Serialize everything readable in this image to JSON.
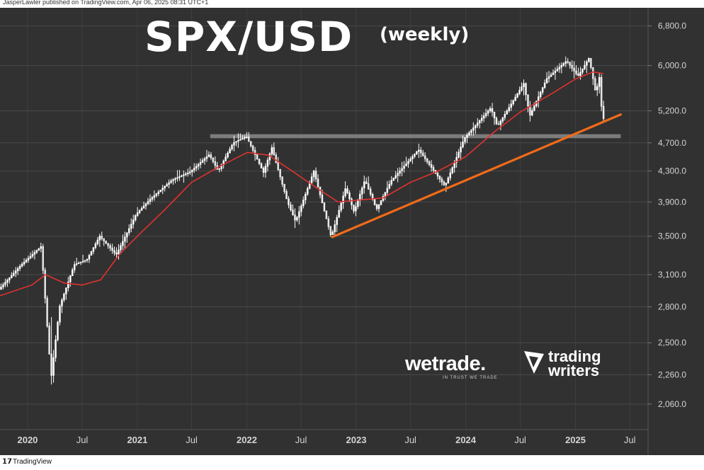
{
  "header": {
    "publisher_line": "JasperLawler published on TradingView.com, Apr 06, 2025 08:31 UTC+1"
  },
  "footer": {
    "brand": "TradingView"
  },
  "chart_data": {
    "type": "candlestick",
    "title": "SPX/USD",
    "subtitle": "(weekly)",
    "y_scale": "log",
    "ylim": [
      1900,
      7200
    ],
    "y_ticks": [
      2060,
      2260,
      2500,
      2800,
      3100,
      3500,
      3900,
      4300,
      4700,
      5200,
      6000,
      6800
    ],
    "y_tick_labels": [
      "2,060.0",
      "2,260.0",
      "2,500.0",
      "2,800.0",
      "3,100.0",
      "3,500.0",
      "3,900.0",
      "4,300.0",
      "4,700.0",
      "5,200.0",
      "6,000.0",
      "6,800.0"
    ],
    "x_ticks": [
      "2020",
      "Jul",
      "2021",
      "Jul",
      "2022",
      "Jul",
      "2023",
      "Jul",
      "2024",
      "Jul",
      "2025",
      "Jul"
    ],
    "xlim": [
      "2019-10-01",
      "2025-08-31"
    ],
    "price_path": [
      [
        "2019-10-01",
        2960
      ],
      [
        "2019-12-15",
        3200
      ],
      [
        "2020-02-19",
        3390
      ],
      [
        "2020-03-23",
        2237
      ],
      [
        "2020-04-20",
        2800
      ],
      [
        "2020-06-08",
        3200
      ],
      [
        "2020-07-20",
        3250
      ],
      [
        "2020-09-01",
        3500
      ],
      [
        "2020-10-26",
        3300
      ],
      [
        "2020-12-31",
        3750
      ],
      [
        "2021-02-15",
        3930
      ],
      [
        "2021-04-30",
        4180
      ],
      [
        "2021-06-30",
        4290
      ],
      [
        "2021-09-01",
        4530
      ],
      [
        "2021-10-01",
        4300
      ],
      [
        "2021-11-20",
        4700
      ],
      [
        "2022-01-03",
        4796
      ],
      [
        "2022-03-01",
        4280
      ],
      [
        "2022-03-29",
        4630
      ],
      [
        "2022-05-20",
        3900
      ],
      [
        "2022-06-16",
        3666
      ],
      [
        "2022-08-16",
        4300
      ],
      [
        "2022-10-13",
        3491
      ],
      [
        "2022-11-30",
        4080
      ],
      [
        "2022-12-28",
        3780
      ],
      [
        "2023-02-02",
        4180
      ],
      [
        "2023-03-13",
        3810
      ],
      [
        "2023-05-01",
        4170
      ],
      [
        "2023-07-31",
        4600
      ],
      [
        "2023-10-27",
        4100
      ],
      [
        "2023-12-31",
        4770
      ],
      [
        "2024-03-28",
        5250
      ],
      [
        "2024-04-19",
        4950
      ],
      [
        "2024-07-16",
        5670
      ],
      [
        "2024-08-05",
        5120
      ],
      [
        "2024-10-01",
        5760
      ],
      [
        "2024-12-06",
        6090
      ],
      [
        "2025-01-13",
        5800
      ],
      [
        "2025-02-19",
        6147
      ],
      [
        "2025-03-13",
        5500
      ],
      [
        "2025-03-25",
        5780
      ],
      [
        "2025-04-04",
        5074
      ]
    ],
    "candles": [
      {
        "week": "2020-03-16",
        "high": 2711,
        "low": 2191
      }
    ],
    "moving_average": {
      "color": "#e0322f",
      "points": [
        [
          "2019-10-01",
          2900
        ],
        [
          "2020-01-15",
          3000
        ],
        [
          "2020-03-01",
          3100
        ],
        [
          "2020-05-01",
          3020
        ],
        [
          "2020-07-01",
          3000
        ],
        [
          "2020-09-01",
          3050
        ],
        [
          "2020-11-01",
          3300
        ],
        [
          "2021-01-01",
          3500
        ],
        [
          "2021-04-01",
          3800
        ],
        [
          "2021-07-01",
          4150
        ],
        [
          "2021-10-01",
          4360
        ],
        [
          "2022-01-03",
          4560
        ],
        [
          "2022-03-15",
          4520
        ],
        [
          "2022-06-01",
          4300
        ],
        [
          "2022-09-01",
          4050
        ],
        [
          "2022-11-01",
          3900
        ],
        [
          "2023-01-01",
          3920
        ],
        [
          "2023-04-01",
          3950
        ],
        [
          "2023-07-01",
          4150
        ],
        [
          "2023-10-01",
          4300
        ],
        [
          "2024-01-01",
          4500
        ],
        [
          "2024-04-01",
          4850
        ],
        [
          "2024-07-01",
          5180
        ],
        [
          "2024-10-01",
          5450
        ],
        [
          "2025-01-01",
          5750
        ],
        [
          "2025-03-01",
          5880
        ],
        [
          "2025-04-04",
          5850
        ]
      ]
    },
    "trendline": {
      "color": "#f06b1a",
      "from": [
        "2022-10-13",
        3491
      ],
      "to": [
        "2025-06-01",
        5140
      ]
    },
    "support_zone": {
      "color": "#8a8a8a",
      "from": "2021-09-01",
      "to": "2025-06-01",
      "low": 4770,
      "high": 4830
    },
    "colors": {
      "background": "#313131",
      "axis_bg": "#313131",
      "grid": "#4a4a4a",
      "candle": "#ffffff",
      "text": "#d4d4d4"
    },
    "logos": [
      {
        "name": "wetrade",
        "text": "wetrade.",
        "tagline": "IN TRUST WE TRADE"
      },
      {
        "name": "trading-writers",
        "lines": [
          "trading",
          "writers"
        ]
      }
    ]
  }
}
